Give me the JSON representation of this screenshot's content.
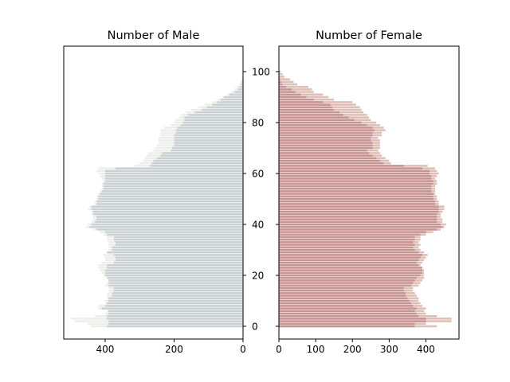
{
  "chart_data": [
    {
      "type": "bar",
      "orientation": "horizontal",
      "direction": "inverted-x",
      "title": "Number of Male",
      "xlim": [
        520,
        0
      ],
      "ylim": [
        -5,
        110
      ],
      "xticks": [
        "400",
        "200",
        "0"
      ],
      "yticks": [
        "0",
        "20",
        "40",
        "60",
        "80",
        "100"
      ],
      "ages_from": 0,
      "series": [
        {
          "color": "#e9ebe6",
          "values": [
            440,
            450,
            490,
            500,
            430,
            400,
            395,
            420,
            420,
            400,
            400,
            395,
            395,
            395,
            390,
            390,
            400,
            395,
            390,
            390,
            405,
            410,
            415,
            420,
            420,
            410,
            400,
            400,
            405,
            395,
            390,
            390,
            390,
            390,
            395,
            395,
            405,
            415,
            435,
            455,
            450,
            440,
            435,
            435,
            440,
            440,
            450,
            445,
            430,
            430,
            425,
            425,
            420,
            415,
            410,
            410,
            410,
            405,
            410,
            415,
            420,
            425,
            420,
            315,
            300,
            290,
            285,
            280,
            275,
            260,
            255,
            250,
            245,
            245,
            245,
            240,
            240,
            240,
            230,
            210,
            200,
            195,
            185,
            180,
            165,
            150,
            130,
            110,
            90,
            75,
            60,
            45,
            35,
            25,
            18,
            12,
            8,
            5,
            3,
            2,
            1
          ]
        },
        {
          "color": "#c3cbce",
          "values": [
            395,
            390,
            390,
            395,
            395,
            390,
            390,
            410,
            400,
            395,
            390,
            390,
            380,
            380,
            375,
            375,
            390,
            390,
            390,
            395,
            400,
            400,
            400,
            395,
            395,
            375,
            370,
            370,
            375,
            395,
            380,
            380,
            370,
            370,
            375,
            375,
            395,
            400,
            425,
            445,
            440,
            430,
            425,
            425,
            435,
            435,
            440,
            440,
            425,
            425,
            420,
            420,
            415,
            410,
            405,
            405,
            405,
            400,
            400,
            400,
            400,
            400,
            370,
            270,
            265,
            260,
            250,
            240,
            235,
            210,
            205,
            200,
            200,
            200,
            200,
            200,
            195,
            195,
            190,
            180,
            175,
            170,
            170,
            160,
            140,
            120,
            105,
            90,
            75,
            65,
            55,
            40,
            25,
            15,
            10,
            6,
            4,
            2,
            1,
            0,
            0
          ]
        }
      ]
    },
    {
      "type": "bar",
      "orientation": "horizontal",
      "title": "Number of Female",
      "xlim": [
        0,
        490
      ],
      "ylim": [
        -5,
        110
      ],
      "xticks": [
        "0",
        "100",
        "200",
        "300",
        "400"
      ],
      "yticks": [
        "0",
        "20",
        "40",
        "60",
        "80",
        "100"
      ],
      "ages_from": 0,
      "series": [
        {
          "color": "#d8aea4",
          "values": [
            430,
            400,
            470,
            470,
            430,
            400,
            395,
            400,
            390,
            385,
            380,
            380,
            375,
            370,
            365,
            365,
            380,
            385,
            390,
            395,
            395,
            395,
            395,
            390,
            385,
            390,
            395,
            400,
            405,
            395,
            385,
            380,
            385,
            380,
            385,
            385,
            400,
            420,
            440,
            450,
            455,
            445,
            445,
            440,
            440,
            445,
            450,
            450,
            435,
            435,
            430,
            430,
            425,
            425,
            425,
            425,
            430,
            430,
            425,
            430,
            435,
            430,
            425,
            405,
            305,
            300,
            290,
            280,
            275,
            270,
            275,
            275,
            275,
            275,
            270,
            280,
            280,
            290,
            285,
            275,
            265,
            250,
            245,
            240,
            230,
            225,
            220,
            210,
            200,
            150,
            135,
            120,
            95,
            90,
            80,
            50,
            40,
            30,
            15,
            10,
            5
          ]
        },
        {
          "color": "#c28a8a",
          "values": [
            370,
            370,
            400,
            400,
            380,
            375,
            370,
            375,
            365,
            360,
            355,
            350,
            345,
            345,
            340,
            340,
            360,
            365,
            370,
            375,
            385,
            390,
            390,
            390,
            380,
            375,
            380,
            385,
            390,
            380,
            370,
            365,
            370,
            365,
            370,
            370,
            385,
            400,
            430,
            445,
            440,
            430,
            430,
            430,
            430,
            435,
            435,
            435,
            425,
            425,
            420,
            420,
            420,
            415,
            415,
            415,
            420,
            420,
            415,
            415,
            410,
            410,
            390,
            340,
            285,
            275,
            265,
            255,
            245,
            240,
            255,
            255,
            255,
            250,
            250,
            255,
            255,
            260,
            255,
            240,
            225,
            205,
            190,
            175,
            165,
            150,
            145,
            140,
            120,
            95,
            75,
            60,
            45,
            35,
            20,
            10,
            6,
            3,
            2,
            1,
            0
          ]
        }
      ]
    }
  ]
}
